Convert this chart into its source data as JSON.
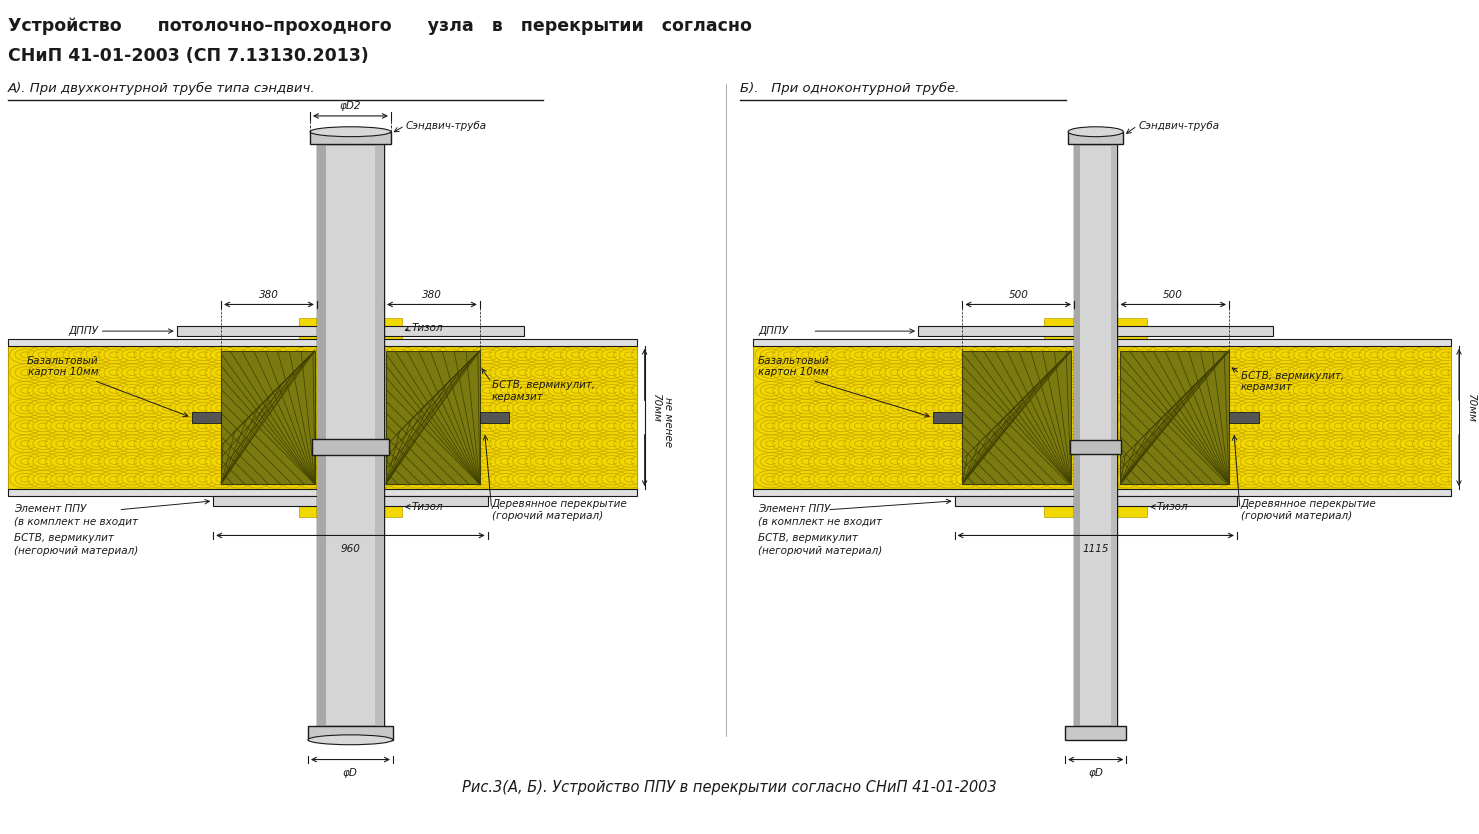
{
  "title_line1": "Устройство      потолочно–проходного      узла   в   перекрытии   согласно",
  "title_line2": "СНиП 41-01-2003 (СП 7.13130.2013)",
  "subtitle_a": "А). При двухконтурной трубе типа сэндвич.",
  "subtitle_b": "Б).   При одноконтурной трубе.",
  "caption": "Рис.3(А, Б). Устройство ППУ в перекрытии согласно СНиП 41-01-2003",
  "bg_color": "#ffffff",
  "line_color": "#1a1a1a",
  "yellow_color": "#f0d800",
  "olive_color": "#7a7a10"
}
